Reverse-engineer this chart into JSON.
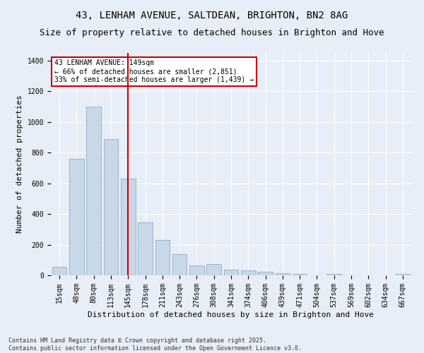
{
  "title": "43, LENHAM AVENUE, SALTDEAN, BRIGHTON, BN2 8AG",
  "subtitle": "Size of property relative to detached houses in Brighton and Hove",
  "xlabel": "Distribution of detached houses by size in Brighton and Hove",
  "ylabel": "Number of detached properties",
  "categories": [
    "15sqm",
    "48sqm",
    "80sqm",
    "113sqm",
    "145sqm",
    "178sqm",
    "211sqm",
    "243sqm",
    "276sqm",
    "308sqm",
    "341sqm",
    "374sqm",
    "406sqm",
    "439sqm",
    "471sqm",
    "504sqm",
    "537sqm",
    "569sqm",
    "602sqm",
    "634sqm",
    "667sqm"
  ],
  "values": [
    55,
    760,
    1100,
    890,
    630,
    345,
    230,
    140,
    65,
    72,
    35,
    32,
    22,
    13,
    10,
    2,
    10,
    0,
    2,
    0,
    8
  ],
  "bar_color": "#c8d8e8",
  "bar_edge_color": "#a0b8cc",
  "vline_index": 4,
  "vline_color": "#cc0000",
  "annotation_text": "43 LENHAM AVENUE: 149sqm\n← 66% of detached houses are smaller (2,851)\n33% of semi-detached houses are larger (1,439) →",
  "annotation_box_color": "#ffffff",
  "annotation_box_edge_color": "#cc0000",
  "ylim": [
    0,
    1450
  ],
  "yticks": [
    0,
    200,
    400,
    600,
    800,
    1000,
    1200,
    1400
  ],
  "background_color": "#e8eef8",
  "grid_color": "#ffffff",
  "footnote": "Contains HM Land Registry data © Crown copyright and database right 2025.\nContains public sector information licensed under the Open Government Licence v3.0.",
  "title_fontsize": 10,
  "subtitle_fontsize": 9,
  "xlabel_fontsize": 8,
  "ylabel_fontsize": 8,
  "tick_fontsize": 7,
  "annotation_fontsize": 7,
  "footnote_fontsize": 6
}
